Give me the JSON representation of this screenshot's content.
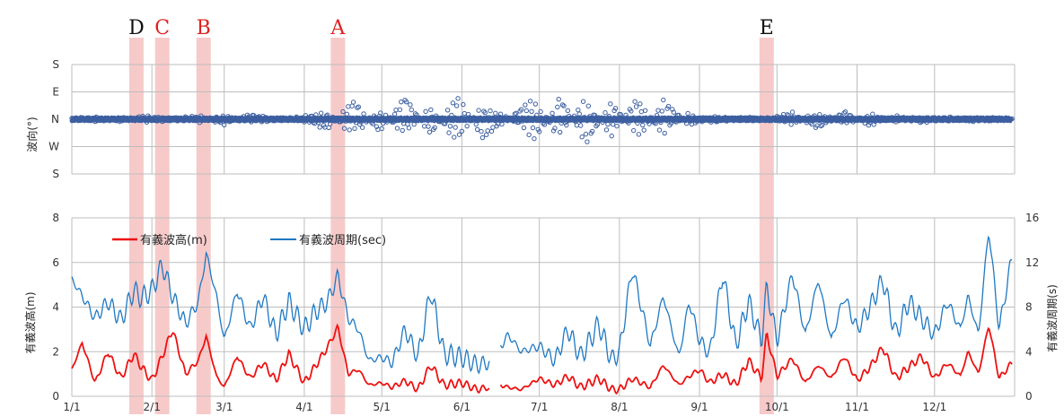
{
  "chart_data": [
    {
      "type": "scatter",
      "ylabel": "波向(°)",
      "direction_ticks": [
        "S",
        "E",
        "N",
        "W",
        "S"
      ],
      "series": [
        {
          "name": "波向",
          "color": "#3c5fa0",
          "x": [
            1,
            10,
            20,
            30,
            40,
            50,
            60,
            70,
            80,
            90,
            100,
            110,
            120,
            130,
            140,
            150,
            160,
            170,
            180,
            190,
            200,
            210,
            220,
            230,
            240,
            250,
            260,
            270,
            280,
            290,
            300,
            310,
            320,
            330,
            340,
            350,
            365
          ],
          "y": [
            0,
            5,
            -5,
            10,
            0,
            -10,
            15,
            -15,
            0,
            -5,
            -30,
            60,
            -40,
            70,
            -50,
            80,
            -60,
            0,
            70,
            -70,
            80,
            -60,
            70,
            -60,
            20,
            -10,
            5,
            0,
            -20,
            30,
            -25,
            20,
            -10,
            10,
            -5,
            5,
            0
          ]
        }
      ],
      "event_markers": [
        {
          "label": "D",
          "day": 26,
          "color": "#111111"
        },
        {
          "label": "C",
          "day": 36,
          "color": "#e02020"
        },
        {
          "label": "B",
          "day": 52,
          "color": "#e02020"
        },
        {
          "label": "A",
          "day": 104,
          "color": "#e02020"
        },
        {
          "label": "E",
          "day": 270,
          "color": "#111111"
        }
      ]
    },
    {
      "type": "line",
      "ylabel": "有義波高(m)",
      "ylabel_right": "有義波周期(s)",
      "ylim": [
        0,
        8
      ],
      "ylim_right": [
        0,
        16
      ],
      "y_ticks": [
        "0",
        "2",
        "4",
        "6",
        "8"
      ],
      "y_ticks_right": [
        "0",
        "4",
        "8",
        "12",
        "16"
      ],
      "x_ticks": [
        "1/1",
        "2/1",
        "3/1",
        "4/1",
        "5/1",
        "6/1",
        "7/1",
        "8/1",
        "9/1",
        "10/1",
        "11/1",
        "12/1"
      ],
      "x_tick_days": [
        1,
        32,
        60,
        91,
        121,
        152,
        182,
        213,
        244,
        274,
        305,
        335
      ],
      "series": [
        {
          "name": "有義波高(m)",
          "color": "#ee1111",
          "axis": "left",
          "x": [
            1,
            5,
            10,
            15,
            20,
            25,
            28,
            32,
            36,
            40,
            45,
            50,
            53,
            57,
            60,
            65,
            70,
            75,
            80,
            85,
            91,
            95,
            100,
            104,
            108,
            112,
            116,
            121,
            125,
            130,
            135,
            140,
            145,
            152,
            158,
            162,
            164,
            167,
            170,
            175,
            182,
            188,
            193,
            198,
            205,
            210,
            213,
            218,
            225,
            230,
            236,
            240,
            244,
            248,
            253,
            258,
            263,
            268,
            270,
            274,
            280,
            285,
            290,
            295,
            300,
            305,
            310,
            315,
            320,
            325,
            330,
            335,
            340,
            345,
            348,
            352,
            356,
            360,
            365
          ],
          "y": [
            1.2,
            2.4,
            0.6,
            2.0,
            0.8,
            1.9,
            1.3,
            0.7,
            1.8,
            3.0,
            1.0,
            1.6,
            2.7,
            0.9,
            0.4,
            1.8,
            0.8,
            1.5,
            0.7,
            1.9,
            0.6,
            1.3,
            2.2,
            3.1,
            1.0,
            1.2,
            0.5,
            0.6,
            0.4,
            0.7,
            0.3,
            1.4,
            0.5,
            0.6,
            0.3,
            0.4,
            0.1,
            0.5,
            0.4,
            0.3,
            0.8,
            0.5,
            0.9,
            0.4,
            0.8,
            0.3,
            0.3,
            0.8,
            0.4,
            1.4,
            0.5,
            0.9,
            1.2,
            0.6,
            1.0,
            0.5,
            1.6,
            0.8,
            2.8,
            0.9,
            1.7,
            0.6,
            1.4,
            0.8,
            1.8,
            0.7,
            1.3,
            2.2,
            0.8,
            1.3,
            1.8,
            0.8,
            1.5,
            0.9,
            2.0,
            1.0,
            3.2,
            0.8,
            1.5
          ]
        },
        {
          "name": "有義波周期(sec)",
          "color": "#1e78c2",
          "axis": "right",
          "x": [
            1,
            5,
            10,
            15,
            20,
            25,
            28,
            32,
            36,
            40,
            45,
            50,
            53,
            57,
            60,
            65,
            70,
            75,
            80,
            85,
            91,
            95,
            100,
            104,
            108,
            112,
            116,
            121,
            125,
            130,
            135,
            140,
            145,
            152,
            158,
            162,
            164,
            167,
            170,
            175,
            182,
            188,
            193,
            198,
            205,
            210,
            213,
            218,
            225,
            230,
            236,
            240,
            244,
            248,
            253,
            258,
            263,
            268,
            270,
            274,
            280,
            285,
            290,
            295,
            300,
            305,
            310,
            315,
            320,
            325,
            330,
            335,
            340,
            345,
            348,
            352,
            356,
            360,
            365
          ],
          "y": [
            10.5,
            9.0,
            7.0,
            8.5,
            6.8,
            9.5,
            8.8,
            9.5,
            11.8,
            9.0,
            6.5,
            8.5,
            12.8,
            9.0,
            5.0,
            9.5,
            6.0,
            9.0,
            5.5,
            8.5,
            6.0,
            7.5,
            8.5,
            10.8,
            7.0,
            6.0,
            3.2,
            3.5,
            3.0,
            6.0,
            3.5,
            9.5,
            3.8,
            3.5,
            2.8,
            3.0,
            2.8,
            4.5,
            5.5,
            4.0,
            4.5,
            3.2,
            6.0,
            3.5,
            6.5,
            3.2,
            4.0,
            11.5,
            4.5,
            9.0,
            3.5,
            8.5,
            5.0,
            3.8,
            11.0,
            4.5,
            8.5,
            5.0,
            9.8,
            5.0,
            11.0,
            5.5,
            10.5,
            5.0,
            9.0,
            6.0,
            8.0,
            10.5,
            5.5,
            8.5,
            7.0,
            5.5,
            8.5,
            6.0,
            9.0,
            5.5,
            15.0,
            6.0,
            12.5
          ]
        }
      ]
    }
  ]
}
